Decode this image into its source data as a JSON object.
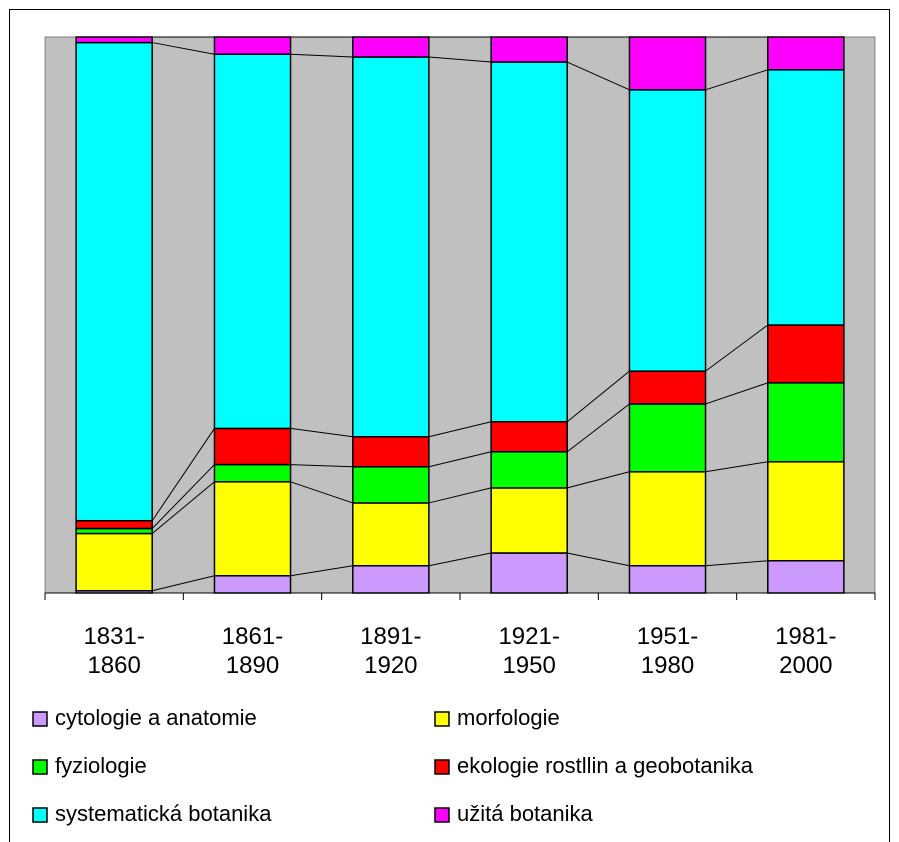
{
  "chart_data": {
    "type": "bar",
    "stacked": true,
    "categories": [
      "1831-1860",
      "1861-1890",
      "1891-1920",
      "1921-1950",
      "1951-1980",
      "1981-2000"
    ],
    "ylim": [
      0,
      100
    ],
    "series": [
      {
        "name": "cytologie a anatomie",
        "color": "#cc99ff",
        "values": [
          0.4,
          3.1,
          4.9,
          7.2,
          4.9,
          5.8
        ]
      },
      {
        "name": "morfologie",
        "color": "#ffff00",
        "values": [
          10.3,
          16.9,
          11.3,
          11.7,
          16.9,
          17.8
        ]
      },
      {
        "name": "fyziologie",
        "color": "#00ff00",
        "values": [
          0.9,
          3.1,
          6.5,
          6.5,
          12.2,
          14.2
        ]
      },
      {
        "name": "ekologie rostllin a geobotanika",
        "color": "#ff0000",
        "values": [
          1.4,
          6.5,
          5.4,
          5.4,
          5.9,
          10.4
        ]
      },
      {
        "name": "systematická botanika",
        "color": "#00ffff",
        "values": [
          86.0,
          67.3,
          68.3,
          64.7,
          50.6,
          45.9
        ]
      },
      {
        "name": "užitá botanika",
        "color": "#ff00ff",
        "values": [
          1.0,
          3.1,
          3.6,
          4.5,
          9.5,
          5.9
        ]
      }
    ]
  }
}
